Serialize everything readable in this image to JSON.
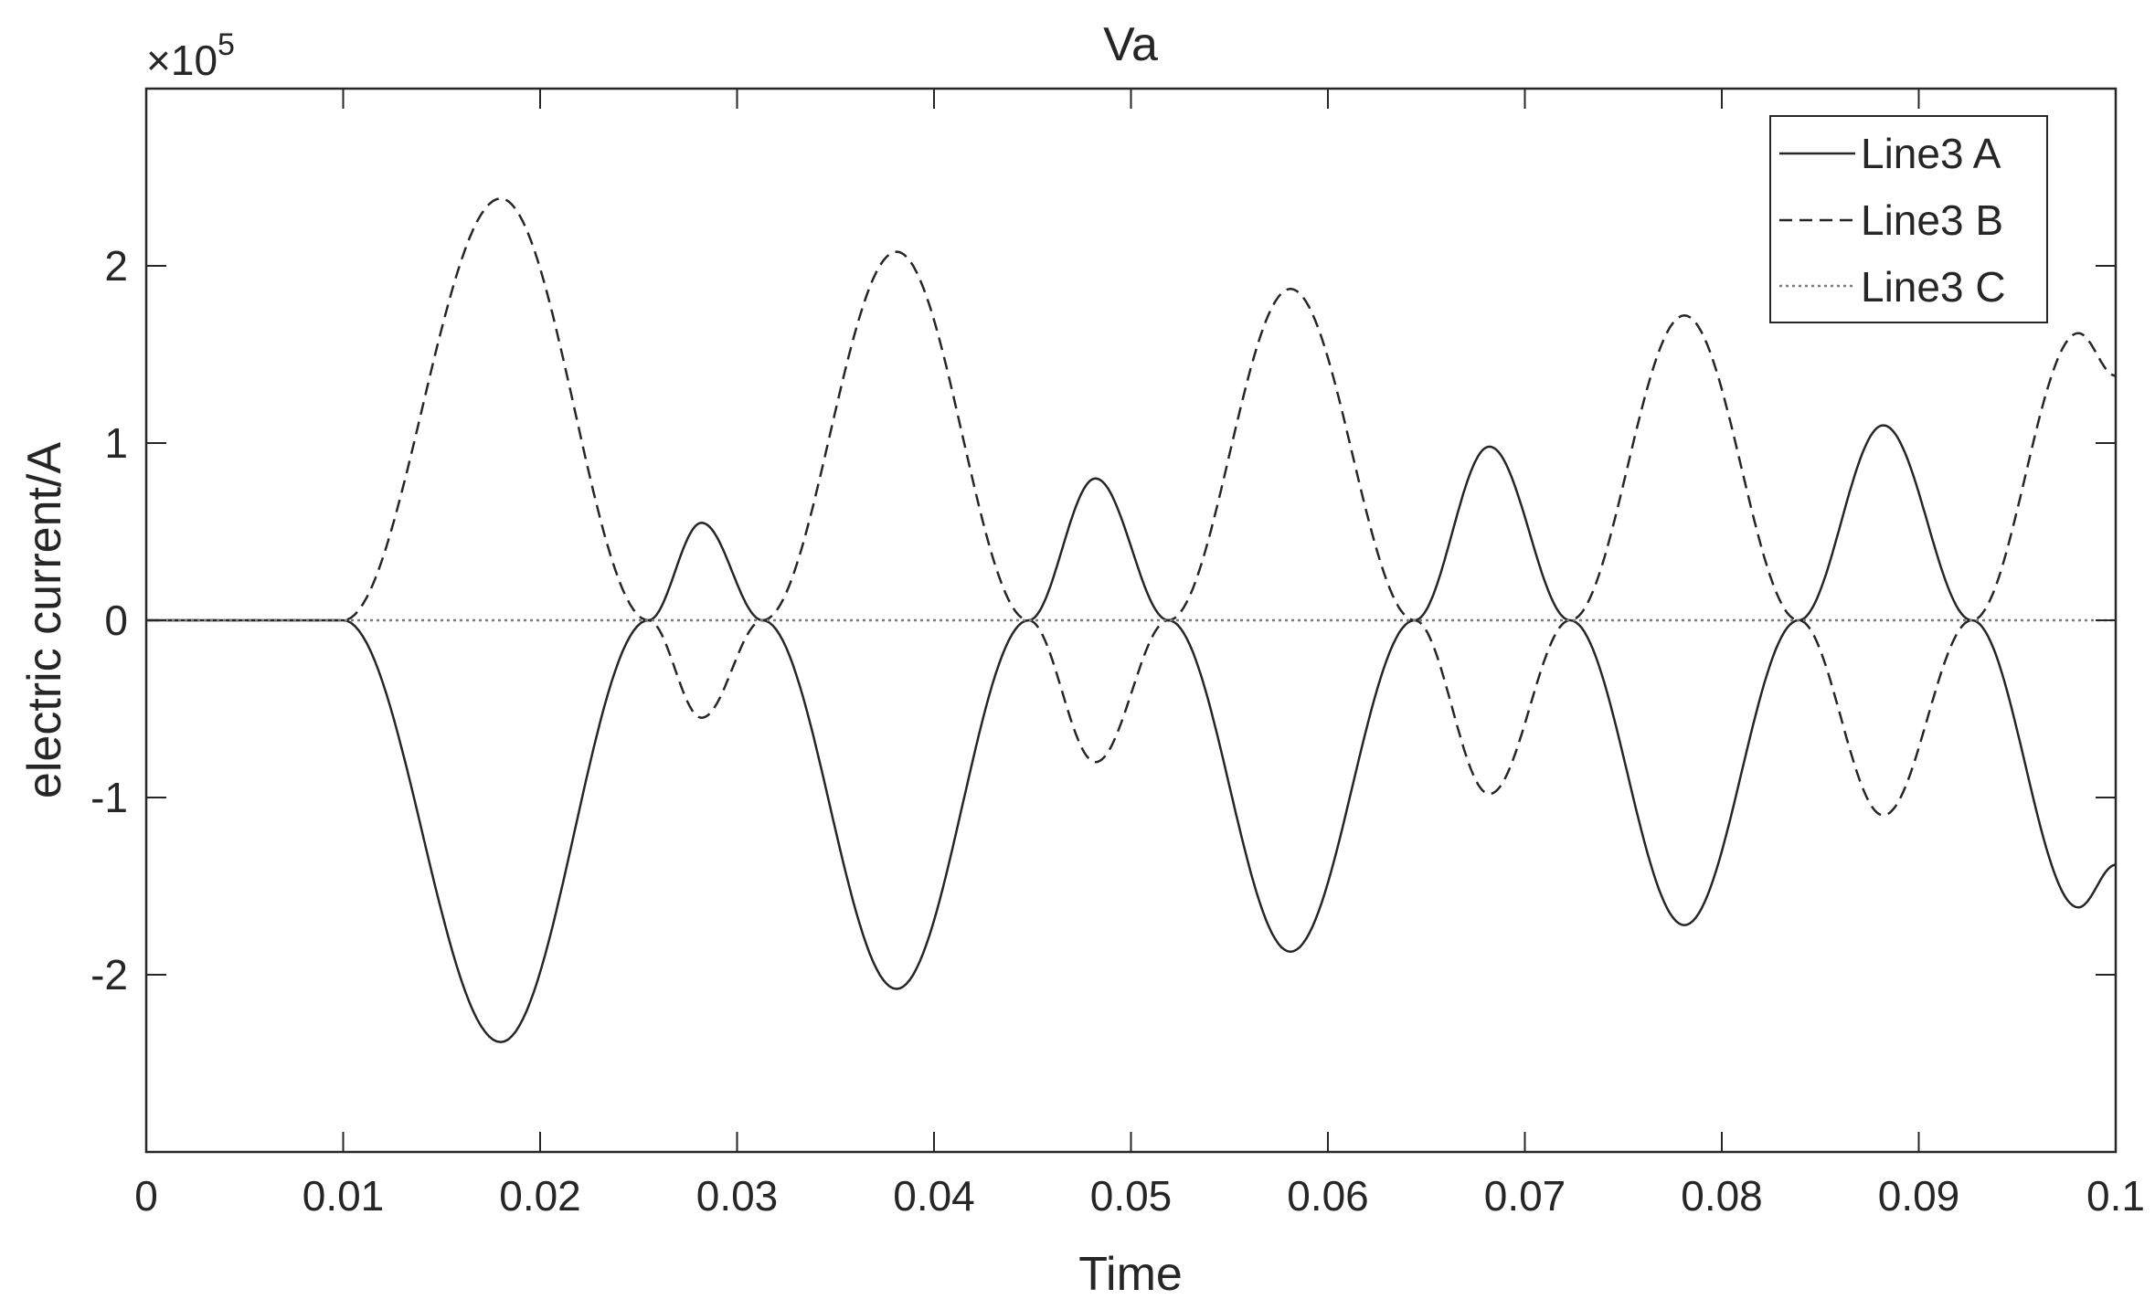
{
  "chart_data": {
    "type": "line",
    "title": "Va",
    "xlabel": "Time",
    "ylabel": "electric current/A",
    "y_exponent_label": "×10",
    "y_exponent_power": "5",
    "xlim": [
      0,
      0.1
    ],
    "ylim": [
      -3,
      3
    ],
    "x_ticks": [
      0,
      0.01,
      0.02,
      0.03,
      0.04,
      0.05,
      0.06,
      0.07,
      0.08,
      0.09,
      0.1
    ],
    "x_tick_labels": [
      "0",
      "0.01",
      "0.02",
      "0.03",
      "0.04",
      "0.05",
      "0.06",
      "0.07",
      "0.08",
      "0.09",
      "0.1"
    ],
    "y_ticks": [
      -2,
      -1,
      0,
      1,
      2
    ],
    "y_tick_labels": [
      "-2",
      "-1",
      "0",
      "1",
      "2"
    ],
    "grid": false,
    "legend_position": "top-right",
    "series": [
      {
        "name": "Line3 A",
        "style": "solid",
        "color": "#262626",
        "x": [
          0,
          0.01,
          0.018,
          0.0255,
          0.0282,
          0.0313,
          0.0381,
          0.0448,
          0.0482,
          0.0519,
          0.0581,
          0.0644,
          0.0682,
          0.0723,
          0.0781,
          0.0839,
          0.0882,
          0.0927,
          0.0981,
          0.1
        ],
        "y": [
          0,
          0,
          -2.38,
          0,
          0.55,
          0,
          -2.08,
          0,
          0.8,
          0,
          -1.87,
          0,
          0.98,
          0,
          -1.72,
          0,
          1.1,
          0,
          -1.62,
          -1.38
        ]
      },
      {
        "name": "Line3 B",
        "style": "dashed",
        "color": "#262626",
        "x": [
          0,
          0.01,
          0.018,
          0.0255,
          0.0282,
          0.0313,
          0.0381,
          0.0448,
          0.0482,
          0.0519,
          0.0581,
          0.0644,
          0.0682,
          0.0723,
          0.0781,
          0.0839,
          0.0882,
          0.0927,
          0.0981,
          0.1
        ],
        "y": [
          0,
          0,
          2.38,
          0,
          -0.55,
          0,
          2.08,
          0,
          -0.8,
          0,
          1.87,
          0,
          -0.98,
          0,
          1.72,
          0,
          -1.1,
          0,
          1.62,
          1.38
        ]
      },
      {
        "name": "Line3 C",
        "style": "dotted",
        "color": "#7a7a7a",
        "x": [
          0,
          0.1
        ],
        "y": [
          0,
          0
        ]
      }
    ]
  }
}
